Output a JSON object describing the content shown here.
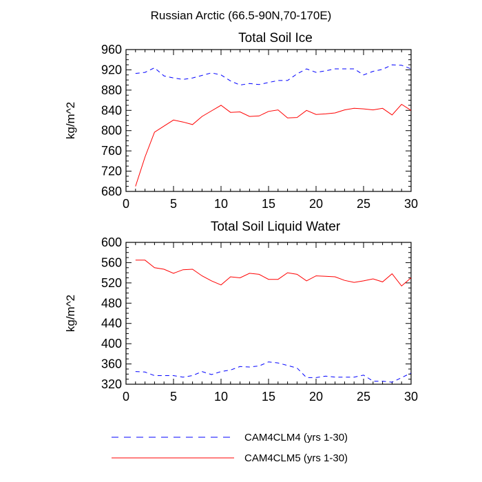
{
  "figure_title": "Russian Arctic (66.5-90N,70-170E)",
  "colors": {
    "clm4": "#0000ff",
    "clm5": "#ff0000",
    "axis": "#000000"
  },
  "legend": [
    {
      "label": "CAM4CLM4 (yrs 1-30)",
      "series": "clm4",
      "dash": "dashed"
    },
    {
      "label": "CAM4CLM5 (yrs 1-30)",
      "series": "clm5",
      "dash": "solid"
    }
  ],
  "chart_data": [
    {
      "type": "line",
      "title": "Total Soil Ice",
      "xlabel": "",
      "ylabel": "kg/m^2",
      "xlim": [
        0,
        30
      ],
      "ylim": [
        680,
        960
      ],
      "xticks": [
        0,
        5,
        10,
        15,
        20,
        25,
        30
      ],
      "yticks": [
        680,
        720,
        760,
        800,
        840,
        880,
        920,
        960
      ],
      "x": [
        1,
        2,
        3,
        4,
        5,
        6,
        7,
        8,
        9,
        10,
        11,
        12,
        13,
        14,
        15,
        16,
        17,
        18,
        19,
        20,
        21,
        22,
        23,
        24,
        25,
        26,
        27,
        28,
        29,
        30
      ],
      "series": [
        {
          "name": "CAM4CLM4 (yrs 1-30)",
          "key": "clm4",
          "values": [
            913,
            915,
            924,
            908,
            904,
            901,
            904,
            909,
            914,
            910,
            898,
            890,
            893,
            891,
            895,
            899,
            899,
            912,
            922,
            915,
            918,
            922,
            922,
            922,
            910,
            917,
            921,
            930,
            929,
            922
          ]
        },
        {
          "name": "CAM4CLM5 (yrs 1-30)",
          "key": "clm5",
          "values": [
            690,
            748,
            797,
            809,
            821,
            817,
            812,
            828,
            839,
            850,
            836,
            837,
            828,
            829,
            838,
            841,
            825,
            826,
            840,
            832,
            833,
            835,
            841,
            844,
            843,
            841,
            844,
            831,
            852,
            840
          ]
        }
      ]
    },
    {
      "type": "line",
      "title": "Total Soil Liquid Water",
      "xlabel": "",
      "ylabel": "kg/m^2",
      "xlim": [
        0,
        30
      ],
      "ylim": [
        320,
        600
      ],
      "xticks": [
        0,
        5,
        10,
        15,
        20,
        25,
        30
      ],
      "yticks": [
        320,
        360,
        400,
        440,
        480,
        520,
        560,
        600
      ],
      "x": [
        1,
        2,
        3,
        4,
        5,
        6,
        7,
        8,
        9,
        10,
        11,
        12,
        13,
        14,
        15,
        16,
        17,
        18,
        19,
        20,
        21,
        22,
        23,
        24,
        25,
        26,
        27,
        28,
        29,
        30
      ],
      "series": [
        {
          "name": "CAM4CLM4 (yrs 1-30)",
          "key": "clm4",
          "values": [
            345,
            344,
            337,
            337,
            337,
            334,
            337,
            345,
            339,
            345,
            348,
            355,
            354,
            356,
            364,
            362,
            357,
            352,
            333,
            333,
            336,
            334,
            334,
            334,
            338,
            326,
            326,
            324,
            333,
            342
          ]
        },
        {
          "name": "CAM4CLM5 (yrs 1-30)",
          "key": "clm5",
          "values": [
            565,
            565,
            550,
            547,
            539,
            546,
            547,
            534,
            524,
            516,
            532,
            530,
            539,
            537,
            527,
            527,
            540,
            537,
            524,
            534,
            533,
            532,
            525,
            521,
            524,
            528,
            522,
            538,
            514,
            530
          ]
        }
      ]
    }
  ]
}
